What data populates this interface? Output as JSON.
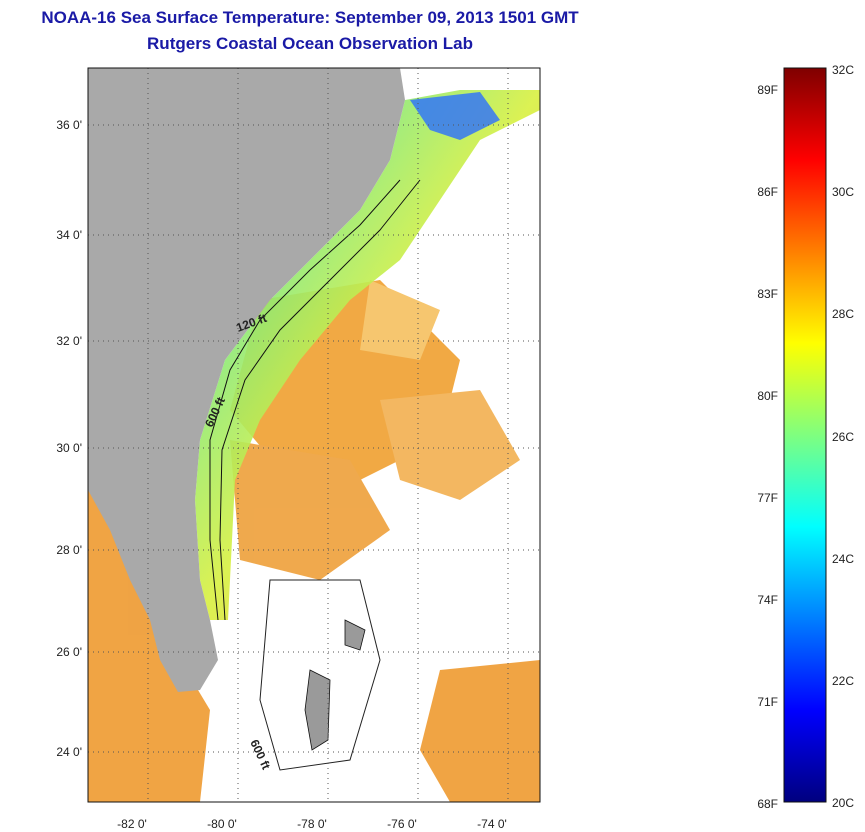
{
  "header": {
    "title": "NOAA-16 Sea Surface Temperature:  September 09, 2013 1501 GMT",
    "subtitle": "Rutgers Coastal Ocean Observation Lab"
  },
  "map": {
    "lon_ticks": [
      "-82 0'",
      "-80 0'",
      "-78 0'",
      "-76 0'",
      "-74 0'"
    ],
    "lat_ticks": [
      "36 0'",
      "34 0'",
      "32 0'",
      "30 0'",
      "28 0'",
      "26 0'",
      "24 0'"
    ],
    "contour_labels": [
      "120 ft",
      "600 ft",
      "600 ft"
    ],
    "land_color": "#a9a9a9",
    "cloud_color": "#ffffff"
  },
  "colorbar": {
    "fahrenheit_labels": [
      "89F",
      "86F",
      "83F",
      "80F",
      "77F",
      "74F",
      "71F",
      "68F"
    ],
    "celsius_labels": [
      "32C",
      "30C",
      "28C",
      "26C",
      "24C",
      "22C",
      "20C"
    ],
    "colors": [
      "#00007f",
      "#0000ff",
      "#007fff",
      "#00ffff",
      "#7fff7f",
      "#ffff00",
      "#ff7f00",
      "#ff0000",
      "#7f0000"
    ]
  }
}
